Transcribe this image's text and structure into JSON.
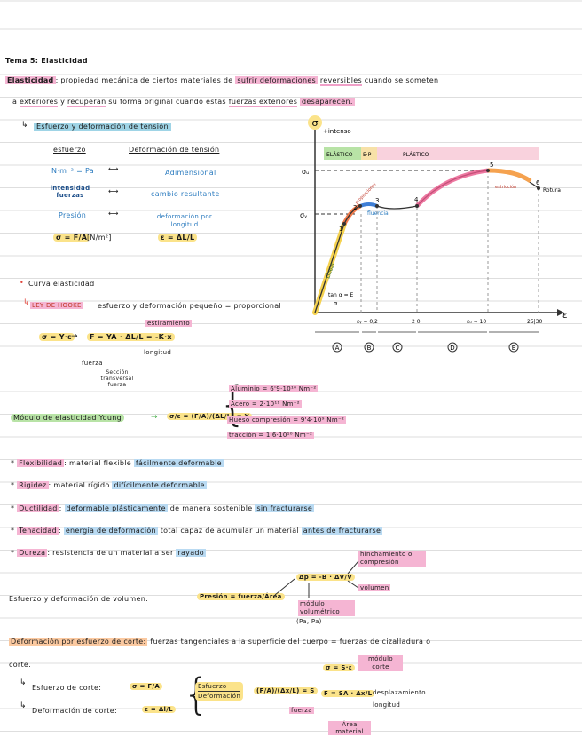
{
  "title": "Tema 5: Elasticidad",
  "elasticidad": {
    "term": "Elasticidad",
    "l1": "propiedad mecánica de ciertos materiales de",
    "sufrir": "sufrir deformaciones",
    "reversibles": "reversibles",
    "l1b": "cuando se someten",
    "a": "a",
    "exteriores": "exteriores",
    "y": "y",
    "recuperan": "recuperan",
    "l2": "su forma original cuando estas",
    "fuerzas": "fuerzas exteriores",
    "desaparecen": "desaparecen."
  },
  "tension": {
    "header": "Esfuerzo y deformación de tensión",
    "col1": "esfuerzo",
    "col2": "Deformación de tensión",
    "r1a": "N·m⁻² = Pa",
    "r1b": "Adimensional",
    "r2a": "intensidad fuerzas",
    "r2b": "cambio resultante",
    "r3a": "Presión",
    "r3b": "deformación por longitud",
    "f1": "σ = F/A",
    "f1unit": "[N/m²]",
    "f2": "ε = ΔL/L"
  },
  "curva": {
    "title": "Curva elasticidad",
    "hooke": "LEY DE HOOKE",
    "hooke_text": "esfuerzo y deformación pequeño = proporcional",
    "formula": "σ = Y·ε",
    "formula2": "F = YA · ΔL/L = -K·x",
    "estiramiento": "estiramiento",
    "longitud": "longitud",
    "fuerza": "fuerza",
    "seccion": "Sección transversal fuerza"
  },
  "chart": {
    "ylabel": "σ",
    "intense": "+intenso",
    "xlabel": "ε",
    "zone_elastic": "ELÁSTICO",
    "zone_ep": "E·P",
    "zone_plastic": "PLÁSTICO",
    "sigma_u": "σᵤ",
    "sigma_y": "σᵧ",
    "p1": "1",
    "p2": "2",
    "p3": "3",
    "p4": "4",
    "p5": "5",
    "p6": "6",
    "lineal": "Lineal",
    "proporcional": "proporcional",
    "fluencia": "fluencia",
    "estriccion": "estricción",
    "rotura": "Rotura",
    "tan": "tan α = E",
    "alpha": "α",
    "x1": "εᵧ ≈ 0,2",
    "x2": "2·0",
    "x3": "εᵤ ≈ 10",
    "x4": "25|30",
    "zA": "A",
    "zB": "B",
    "zC": "C",
    "zD": "D",
    "zE": "E"
  },
  "young": {
    "label": "Módulo de elasticidad Young",
    "formula": "σ/ε = (F/A)/(ΔL/L) = Y",
    "v1": "Aluminio = 6'9·10¹⁰ Nm⁻²",
    "v2": "Acero = 2·10¹¹ Nm⁻²",
    "v3": "Hueso compresión = 9'4·10⁹ Nm⁻²",
    "v4": "tracción = 1'6·10¹⁰ Nm⁻²"
  },
  "props": [
    {
      "term": "Flexibilidad",
      "text": "material flexible",
      "hl": "fácilmente deformable"
    },
    {
      "term": "Rigidez",
      "text": "material rígido",
      "hl": "difícilmente deformable"
    },
    {
      "term": "Ductilidad",
      "hl": "deformable plásticamente",
      "text": "de manera sostenible",
      "hl2": "sin fracturarse"
    },
    {
      "term": "Tenacidad",
      "hl": "energía de deformación",
      "text": "total capaz de acumular un material",
      "hl2": "antes de fracturarse"
    },
    {
      "term": "Dureza",
      "text": "resistencia de un material a ser",
      "hl": "rayado"
    }
  ],
  "volumen": {
    "label": "Esfuerzo y deformación de volumen:",
    "presion": "Presión = fuerza/Área",
    "formula": "Δp = -B · ΔV/V",
    "hinch": "hinchamiento o compresión",
    "vol": "volumen",
    "modulo": "módulo volumétrico",
    "unit": "(Pa, Pa)"
  },
  "corte": {
    "label": "Deformación por esfuerzo de corte:",
    "text1": "fuerzas tangenciales a la superficie del cuerpo = fuerzas de cizalladura o",
    "text2": "corte.",
    "e_label": "Esfuerzo de corte:",
    "e_formula": "σ = F/A",
    "d_label": "Deformación de corte:",
    "d_formula": "ε = Δl/L",
    "ratio_top": "Esfuerzo",
    "ratio_bottom": "Deformación",
    "ratio": "(F/A)/(Δx/L) = S",
    "sigma": "σ = S·ε",
    "modulo": "módulo corte",
    "fs": "F = SA · Δx/L",
    "desp": "desplazamiento",
    "long": "longitud",
    "fuerza": "fuerza",
    "area": "Área material"
  }
}
